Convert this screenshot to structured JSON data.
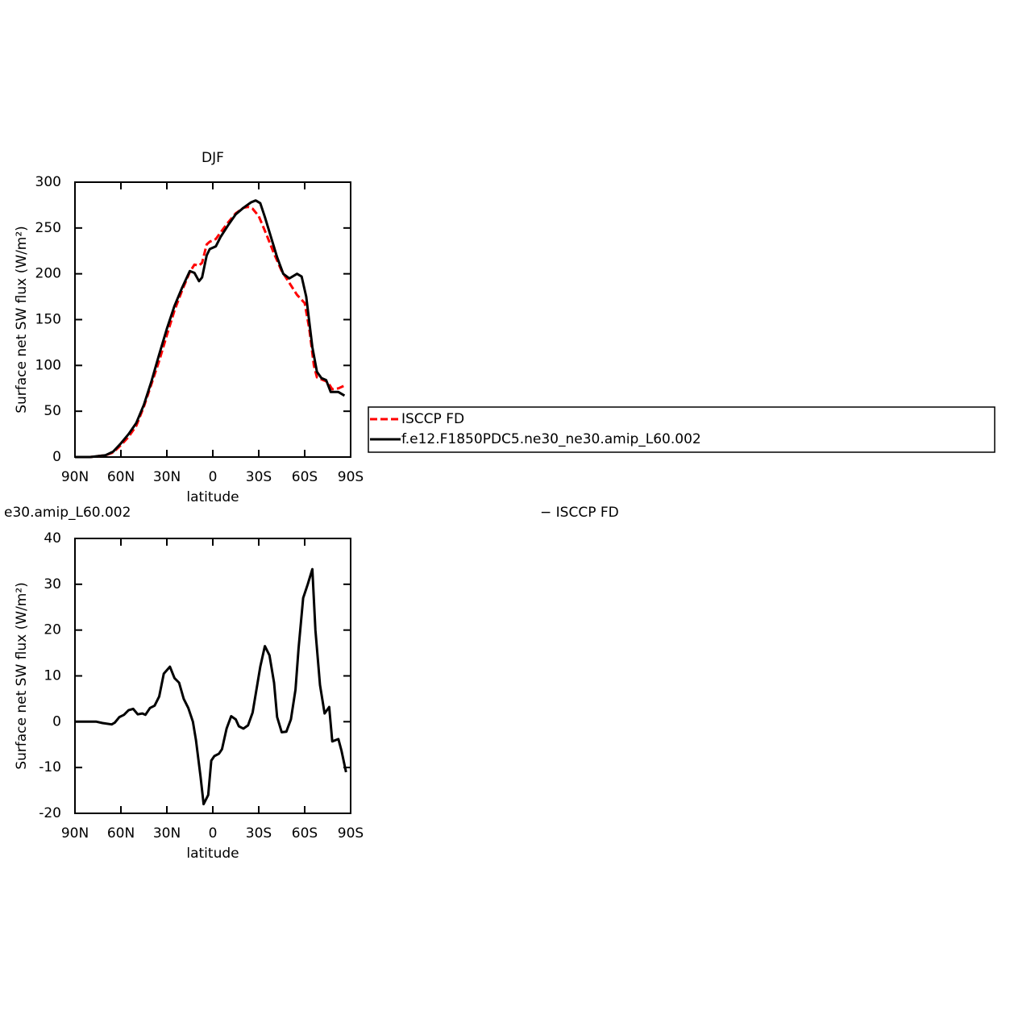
{
  "chart_data": [
    {
      "type": "line",
      "title": "DJF",
      "x_label": "latitude",
      "y_label": "Surface net SW flux (W/m²)",
      "xlim": [
        90,
        -90
      ],
      "xticks": [
        {
          "value": 90,
          "label": "90N"
        },
        {
          "value": 60,
          "label": "60N"
        },
        {
          "value": 30,
          "label": "30N"
        },
        0,
        {
          "value": -30,
          "label": "30S"
        },
        {
          "value": -60,
          "label": "60S"
        },
        {
          "value": -90,
          "label": "90S"
        }
      ],
      "ylim": [
        0,
        300
      ],
      "yticks": [
        0,
        50,
        100,
        150,
        200,
        250,
        300
      ],
      "legend": "right",
      "series": [
        {
          "name": "ISCCP FD",
          "color": "#ff0000",
          "line_style": "dashed",
          "x": [
            90,
            85,
            80,
            75,
            70,
            65,
            60,
            55,
            50,
            45,
            40,
            35,
            30,
            25,
            20,
            15,
            12,
            9,
            7,
            4,
            2,
            -2,
            -5,
            -10,
            -15,
            -20,
            -23,
            -26,
            -30,
            -35,
            -40,
            -45,
            -50,
            -55,
            -60,
            -63,
            -66,
            -68,
            -72,
            -75,
            -78,
            -82,
            -86
          ],
          "values": [
            0,
            0,
            0,
            1,
            2,
            5,
            13,
            22,
            34,
            55,
            80,
            105,
            133,
            160,
            182,
            202,
            210,
            209,
            212,
            232,
            235,
            238,
            245,
            256,
            266,
            272,
            273,
            271,
            263,
            243,
            222,
            203,
            190,
            177,
            168,
            140,
            100,
            87,
            84,
            82,
            74,
            75,
            78
          ]
        },
        {
          "name": "f.e12.F1850PDC5.ne30_ne30.amip_L60.002",
          "color": "#000000",
          "line_style": "solid",
          "x": [
            90,
            85,
            80,
            75,
            70,
            65,
            60,
            55,
            50,
            45,
            40,
            35,
            30,
            25,
            20,
            15,
            12,
            9,
            7,
            4,
            2,
            -2,
            -5,
            -10,
            -15,
            -20,
            -25,
            -28,
            -31,
            -34,
            -38,
            -42,
            -46,
            -50,
            -55,
            -58,
            -61,
            -65,
            -68,
            -71,
            -74,
            -77,
            -82,
            -86
          ],
          "values": [
            0,
            0,
            0,
            1,
            2,
            6,
            15,
            25,
            37,
            57,
            83,
            112,
            140,
            165,
            185,
            203,
            201,
            192,
            196,
            220,
            227,
            230,
            240,
            253,
            265,
            272,
            278,
            280,
            277,
            262,
            240,
            218,
            200,
            195,
            200,
            197,
            175,
            120,
            93,
            86,
            84,
            71,
            71,
            67
          ]
        }
      ]
    },
    {
      "type": "line",
      "title_left": "e30.amip_L60.002",
      "title_right": "− ISCCP FD",
      "x_label": "latitude",
      "y_label": "Surface net SW flux (W/m²)",
      "xlim": [
        90,
        -90
      ],
      "xticks": [
        {
          "value": 90,
          "label": "90N"
        },
        {
          "value": 60,
          "label": "60N"
        },
        {
          "value": 30,
          "label": "30N"
        },
        0,
        {
          "value": -30,
          "label": "30S"
        },
        {
          "value": -60,
          "label": "60S"
        },
        {
          "value": -90,
          "label": "90S"
        }
      ],
      "ylim": [
        -20,
        40
      ],
      "yticks": [
        -20,
        -10,
        0,
        10,
        20,
        30,
        40
      ],
      "series": [
        {
          "color": "#000000",
          "line_style": "solid",
          "x": [
            90,
            76,
            72,
            66,
            64,
            61,
            58,
            55,
            52,
            49,
            46,
            44,
            41,
            38,
            35,
            32,
            28,
            25,
            22,
            19,
            16,
            13,
            11,
            8,
            6,
            3,
            1,
            -1,
            -4,
            -6,
            -9,
            -12,
            -15,
            -17,
            -20,
            -23,
            -26,
            -29,
            -31,
            -34,
            -37,
            -40,
            -42,
            -45,
            -48,
            -51,
            -54,
            -56,
            -59,
            -62,
            -65,
            -67,
            -70,
            -73,
            -76,
            -78,
            -82,
            -84,
            -87
          ],
          "values": [
            0,
            0,
            -0.3,
            -0.6,
            -0.2,
            1,
            1.5,
            2.5,
            2.8,
            1.6,
            1.8,
            1.5,
            3,
            3.5,
            5.5,
            10.5,
            12,
            9.5,
            8.5,
            5,
            3,
            0,
            -4,
            -12,
            -18,
            -16,
            -8.5,
            -7.5,
            -7,
            -6,
            -1.5,
            1.2,
            0.5,
            -1,
            -1.5,
            -0.8,
            2,
            8,
            12,
            16.5,
            14.5,
            8.5,
            1,
            -2.3,
            -2.2,
            0.5,
            7,
            16,
            27,
            30,
            33.3,
            20,
            8,
            1.8,
            3.2,
            -4.3,
            -3.8,
            -6.3,
            -11
          ]
        }
      ]
    }
  ]
}
